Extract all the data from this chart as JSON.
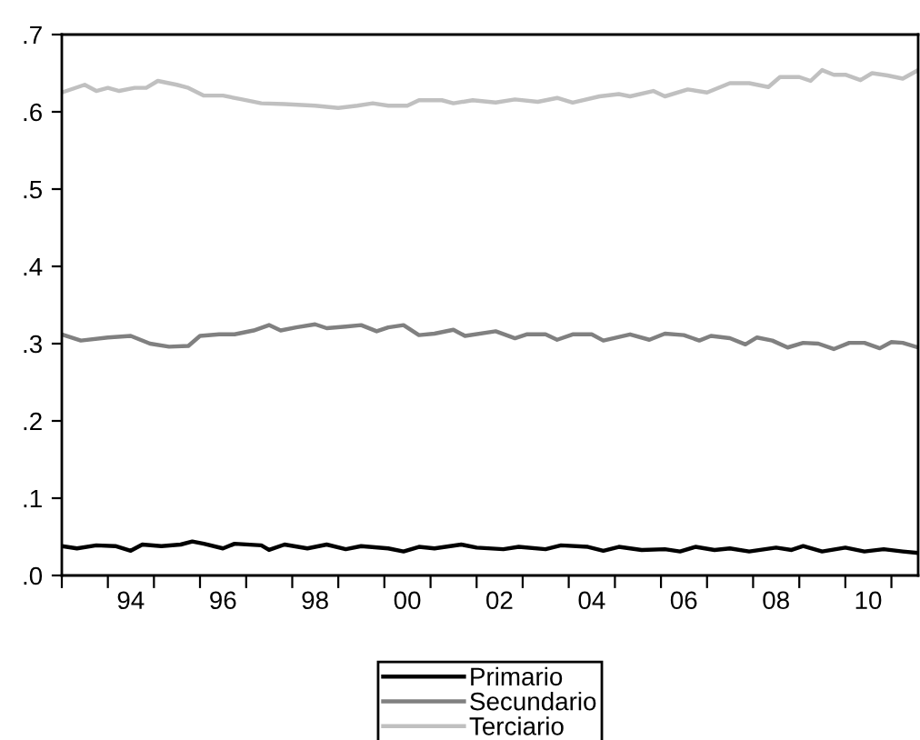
{
  "chart_data": {
    "type": "line",
    "xlim": [
      "1993-01",
      "2011-08"
    ],
    "ylim": [
      0,
      0.7
    ],
    "xticks": [
      {
        "value": "1993-01",
        "label": null
      },
      {
        "value": "1994-01",
        "label": null
      },
      {
        "value": "1995-01",
        "label": null
      },
      {
        "value": "1996-01",
        "label": null
      },
      {
        "value": "1997-01",
        "label": null
      },
      {
        "value": "1998-01",
        "label": null
      },
      {
        "value": "1999-01",
        "label": null
      },
      {
        "value": "2000-01",
        "label": null
      },
      {
        "value": "2001-01",
        "label": null
      },
      {
        "value": "2002-01",
        "label": null
      },
      {
        "value": "2003-01",
        "label": null
      },
      {
        "value": "2004-01",
        "label": null
      },
      {
        "value": "2005-01",
        "label": null
      },
      {
        "value": "2006-01",
        "label": null
      },
      {
        "value": "2007-01",
        "label": null
      },
      {
        "value": "2008-01",
        "label": null
      },
      {
        "value": "2009-01",
        "label": null
      },
      {
        "value": "2010-01",
        "label": null
      },
      {
        "value": "2011-01",
        "label": null
      },
      {
        "value": "1994-07",
        "label": "94"
      },
      {
        "value": "1996-07",
        "label": "96"
      },
      {
        "value": "1998-07",
        "label": "98"
      },
      {
        "value": "2000-07",
        "label": "00"
      },
      {
        "value": "2002-07",
        "label": "02"
      },
      {
        "value": "2004-07",
        "label": "04"
      },
      {
        "value": "2006-07",
        "label": "06"
      },
      {
        "value": "2008-07",
        "label": "08"
      },
      {
        "value": "2010-07",
        "label": "10"
      }
    ],
    "yticks": [
      {
        "value": 0,
        "label": ".0"
      },
      {
        "value": 0.1,
        "label": ".1"
      },
      {
        "value": 0.2,
        "label": ".2"
      },
      {
        "value": 0.3,
        "label": ".3"
      },
      {
        "value": 0.4,
        "label": ".4"
      },
      {
        "value": 0.5,
        "label": ".5"
      },
      {
        "value": 0.6,
        "label": ".6"
      },
      {
        "value": 0.7,
        "label": ".7"
      }
    ],
    "grid": false,
    "legend": "bottom",
    "marker": "none",
    "line_style": "solid",
    "series": [
      {
        "name": "Primario",
        "color": "#000000",
        "x": [
          "1993-01",
          "1993-05",
          "1993-10",
          "1994-03",
          "1994-07",
          "1994-10",
          "1995-03",
          "1995-08",
          "1995-11",
          "1996-02",
          "1996-07",
          "1996-10",
          "1997-05",
          "1997-07",
          "1997-11",
          "1998-05",
          "1998-10",
          "1999-03",
          "1999-07",
          "2000-02",
          "2000-06",
          "2000-10",
          "2001-02",
          "2001-09",
          "2002-01",
          "2002-08",
          "2002-12",
          "2003-07",
          "2003-11",
          "2004-06",
          "2004-10",
          "2005-02",
          "2005-08",
          "2006-02",
          "2006-06",
          "2006-10",
          "2007-03",
          "2007-07",
          "2007-12",
          "2008-07",
          "2008-11",
          "2009-02",
          "2009-07",
          "2010-01",
          "2010-06",
          "2010-11",
          "2011-04",
          "2011-08"
        ],
        "values": [
          0.038,
          0.035,
          0.039,
          0.038,
          0.032,
          0.04,
          0.038,
          0.04,
          0.044,
          0.041,
          0.035,
          0.041,
          0.039,
          0.033,
          0.04,
          0.035,
          0.04,
          0.034,
          0.038,
          0.035,
          0.031,
          0.037,
          0.035,
          0.04,
          0.036,
          0.034,
          0.037,
          0.034,
          0.039,
          0.037,
          0.032,
          0.037,
          0.033,
          0.034,
          0.031,
          0.037,
          0.033,
          0.035,
          0.031,
          0.036,
          0.033,
          0.038,
          0.031,
          0.036,
          0.031,
          0.034,
          0.031,
          0.029
        ]
      },
      {
        "name": "Secundario",
        "color": "#808080",
        "x": [
          "1993-01",
          "1993-06",
          "1994-01",
          "1994-07",
          "1994-12",
          "1995-05",
          "1995-10",
          "1996-01",
          "1996-06",
          "1996-10",
          "1997-03",
          "1997-07",
          "1997-10",
          "1998-02",
          "1998-07",
          "1998-10",
          "1999-03",
          "1999-07",
          "1999-11",
          "2000-02",
          "2000-06",
          "2000-10",
          "2001-02",
          "2001-07",
          "2001-10",
          "2002-06",
          "2002-11",
          "2003-02",
          "2003-07",
          "2003-10",
          "2004-02",
          "2004-07",
          "2004-10",
          "2005-05",
          "2005-10",
          "2006-02",
          "2006-07",
          "2006-11",
          "2007-02",
          "2007-07",
          "2007-11",
          "2008-02",
          "2008-06",
          "2008-10",
          "2009-02",
          "2009-06",
          "2009-10",
          "2010-02",
          "2010-06",
          "2010-10",
          "2011-01",
          "2011-04",
          "2011-08"
        ],
        "values": [
          0.312,
          0.304,
          0.308,
          0.31,
          0.3,
          0.296,
          0.297,
          0.31,
          0.312,
          0.312,
          0.317,
          0.324,
          0.317,
          0.321,
          0.325,
          0.32,
          0.322,
          0.324,
          0.316,
          0.321,
          0.324,
          0.311,
          0.313,
          0.318,
          0.31,
          0.316,
          0.307,
          0.312,
          0.312,
          0.305,
          0.312,
          0.312,
          0.304,
          0.312,
          0.305,
          0.313,
          0.311,
          0.304,
          0.31,
          0.307,
          0.299,
          0.308,
          0.304,
          0.295,
          0.301,
          0.3,
          0.293,
          0.301,
          0.301,
          0.294,
          0.302,
          0.301,
          0.295
        ]
      },
      {
        "name": "Terciario",
        "color": "#c0c0c0",
        "x": [
          "1993-01",
          "1993-07",
          "1993-10",
          "1994-01",
          "1994-04",
          "1994-08",
          "1994-11",
          "1995-02",
          "1995-07",
          "1995-10",
          "1996-02",
          "1996-07",
          "1996-12",
          "1997-05",
          "1997-11",
          "1998-07",
          "1999-01",
          "1999-06",
          "1999-10",
          "2000-02",
          "2000-07",
          "2000-10",
          "2001-04",
          "2001-07",
          "2001-12",
          "2002-06",
          "2002-11",
          "2003-05",
          "2003-10",
          "2004-02",
          "2004-09",
          "2005-02",
          "2005-05",
          "2005-11",
          "2006-02",
          "2006-08",
          "2007-01",
          "2007-07",
          "2007-12",
          "2008-05",
          "2008-08",
          "2009-01",
          "2009-04",
          "2009-07",
          "2009-10",
          "2010-01",
          "2010-05",
          "2010-08",
          "2010-12",
          "2011-04",
          "2011-08"
        ],
        "values": [
          0.625,
          0.635,
          0.627,
          0.631,
          0.627,
          0.631,
          0.631,
          0.64,
          0.635,
          0.631,
          0.621,
          0.621,
          0.616,
          0.611,
          0.61,
          0.608,
          0.605,
          0.608,
          0.611,
          0.608,
          0.608,
          0.615,
          0.615,
          0.611,
          0.615,
          0.612,
          0.616,
          0.613,
          0.618,
          0.612,
          0.62,
          0.623,
          0.62,
          0.627,
          0.62,
          0.629,
          0.625,
          0.637,
          0.637,
          0.632,
          0.645,
          0.645,
          0.64,
          0.654,
          0.648,
          0.648,
          0.641,
          0.65,
          0.647,
          0.643,
          0.654
        ]
      }
    ]
  }
}
